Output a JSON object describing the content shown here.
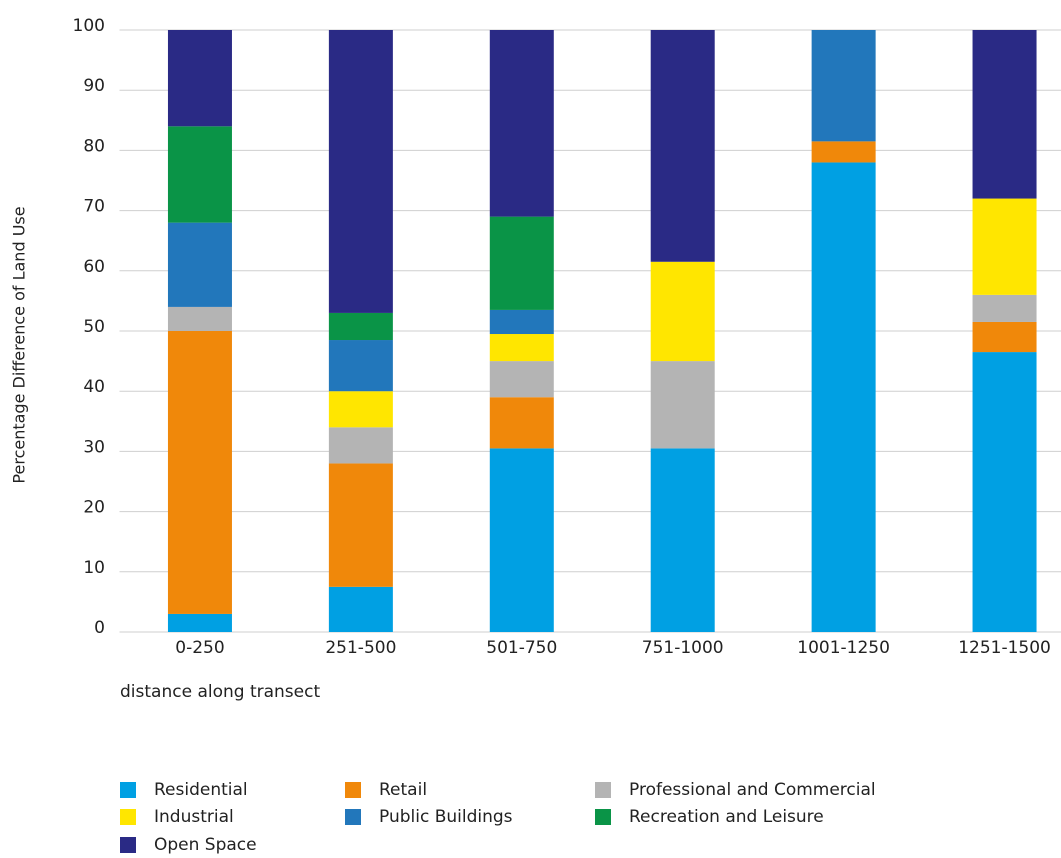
{
  "chart_data": {
    "type": "stacked_bar",
    "y_label": "Percentage Difference of Land Use",
    "x_label": "distance along transect",
    "categories": [
      "0-250",
      "251-500",
      "501-750",
      "751-1000",
      "1001-1250",
      "1251-1500"
    ],
    "series": [
      {
        "name": "Residential",
        "color": "#00a0e3",
        "values": [
          3,
          7.5,
          30.5,
          30.5,
          78,
          46.5
        ]
      },
      {
        "name": "Retail",
        "color": "#f0880a",
        "values": [
          47,
          20.5,
          8.5,
          0,
          3.5,
          5
        ]
      },
      {
        "name": "Professional and Commercial",
        "color": "#b4b4b4",
        "values": [
          4,
          6,
          6,
          14.5,
          0,
          4.5
        ]
      },
      {
        "name": "Industrial",
        "color": "#ffe600",
        "values": [
          0,
          6,
          4.5,
          16.5,
          0,
          16
        ]
      },
      {
        "name": "Public Buildings",
        "color": "#2277bb",
        "values": [
          14,
          8.5,
          4,
          0,
          18.5,
          0
        ]
      },
      {
        "name": "Recreation and Leisure",
        "color": "#0a9447",
        "values": [
          16,
          4.5,
          15.5,
          0,
          0,
          0
        ]
      },
      {
        "name": "Open Space",
        "color": "#2a2a85",
        "values": [
          16,
          47,
          31,
          38.5,
          0,
          28
        ]
      }
    ],
    "ylim": [
      0,
      100
    ],
    "yticks": [
      0,
      10,
      20,
      30,
      40,
      50,
      60,
      70,
      80,
      90,
      100
    ],
    "grid": true
  }
}
